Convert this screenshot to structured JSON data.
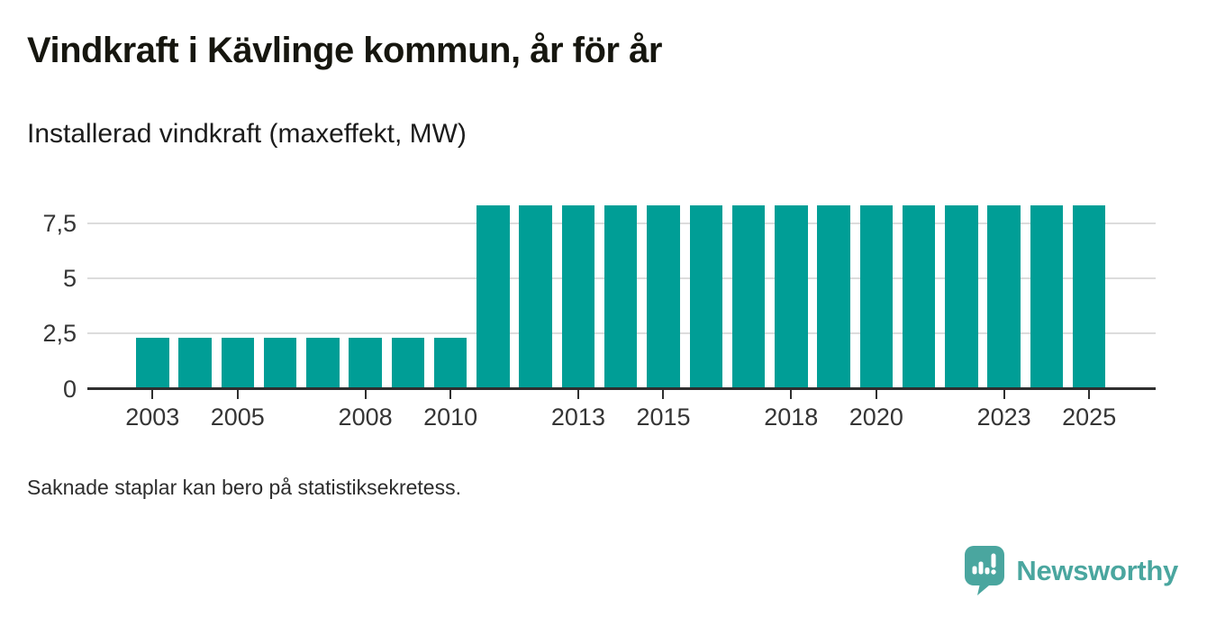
{
  "header": {
    "title": "Vindkraft i Kävlinge kommun, år för år",
    "subtitle": "Installerad vindkraft (maxeffekt, MW)"
  },
  "chart_data": {
    "type": "bar",
    "title": "Vindkraft i Kävlinge kommun, år för år",
    "subtitle": "Installerad vindkraft (maxeffekt, MW)",
    "ylabel": "Installerad vindkraft (maxeffekt, MW)",
    "xlabel": "",
    "unit": "MW",
    "categories": [
      2003,
      2004,
      2005,
      2006,
      2007,
      2008,
      2009,
      2010,
      2011,
      2012,
      2013,
      2014,
      2015,
      2016,
      2017,
      2018,
      2019,
      2020,
      2021,
      2022,
      2023,
      2024,
      2025
    ],
    "values": [
      2.3,
      2.3,
      2.3,
      2.3,
      2.3,
      2.3,
      2.3,
      2.3,
      8.3,
      8.3,
      8.3,
      8.3,
      8.3,
      8.3,
      8.3,
      8.3,
      8.3,
      8.3,
      8.3,
      8.3,
      8.3,
      8.3,
      8.3
    ],
    "ylim": [
      0,
      8.9
    ],
    "yticks": [
      {
        "value": 0,
        "label": "0"
      },
      {
        "value": 2.5,
        "label": "2,5"
      },
      {
        "value": 5,
        "label": "5"
      },
      {
        "value": 7.5,
        "label": "7,5"
      }
    ],
    "xticks": [
      2003,
      2005,
      2008,
      2010,
      2013,
      2015,
      2018,
      2020,
      2023,
      2025
    ],
    "bar_color": "#009e96",
    "grid": "horizontal",
    "gridline_color": "#dcdcdc",
    "axis_color": "#2f2f2f",
    "legend": "none",
    "decimal_separator": ","
  },
  "footer": {
    "note": "Saknade staplar kan bero på statistiksekretess."
  },
  "branding": {
    "logo_text": "Newsworthy",
    "logo_color": "#4aa69f",
    "logo_icon": "speech-bubble-bar-chart-icon"
  }
}
